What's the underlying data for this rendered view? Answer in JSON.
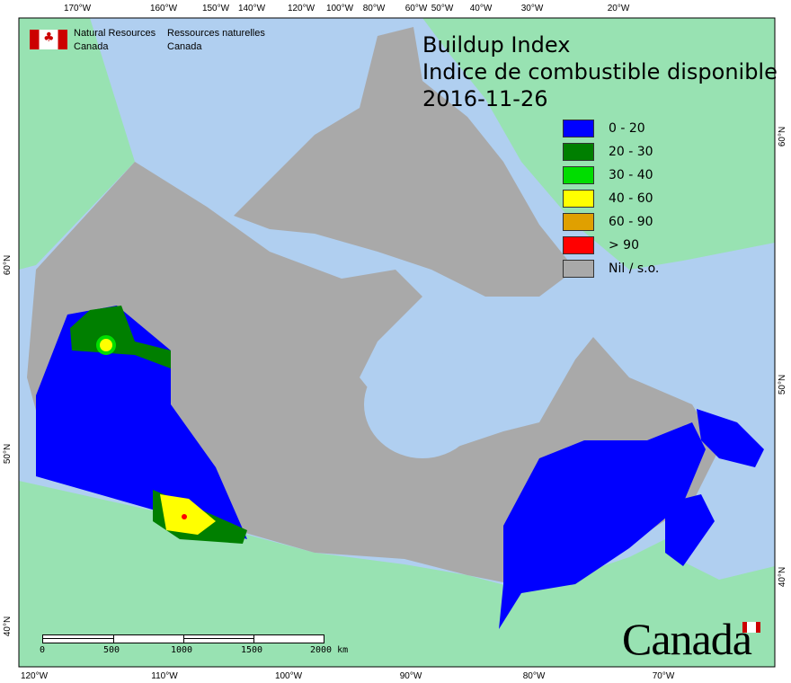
{
  "map": {
    "title_lines": [
      "Buildup Index",
      "Indice de combustible disponible",
      "2016-11-26"
    ],
    "agency": {
      "en_line1": "Natural Resources",
      "en_line2": "Canada",
      "fr_line1": "Ressources naturelles",
      "fr_line2": "Canada"
    },
    "wordmark": "Canada",
    "legend": [
      {
        "label": "0 - 20",
        "color": "#0000ff"
      },
      {
        "label": "20 - 30",
        "color": "#007f00"
      },
      {
        "label": "30 - 40",
        "color": "#00dd00"
      },
      {
        "label": "40 - 60",
        "color": "#ffff00"
      },
      {
        "label": "60 - 90",
        "color": "#e0a000"
      },
      {
        "label": "> 90",
        "color": "#ff0000"
      },
      {
        "label": "Nil / s.o.",
        "color": "#a9a9a9"
      }
    ],
    "top_ticks": [
      "170°W",
      "160°W",
      "150°W",
      "140°W",
      "120°W",
      "100°W",
      "80°W",
      "60°W",
      "50°W",
      "40°W",
      "30°W",
      "20°W"
    ],
    "bottom_ticks": [
      "120°W",
      "110°W",
      "100°W",
      "90°W",
      "80°W",
      "70°W"
    ],
    "left_ticks": [
      "60°N",
      "50°N",
      "40°N"
    ],
    "right_ticks": [
      "60°N",
      "50°N",
      "40°N"
    ],
    "scalebar": [
      "0",
      "500",
      "1000",
      "1500",
      "2000 km"
    ],
    "colors": {
      "ocean": "#b0cff0",
      "foreign_land": "#98e2b2",
      "no_data": "#a9a9a9"
    }
  }
}
